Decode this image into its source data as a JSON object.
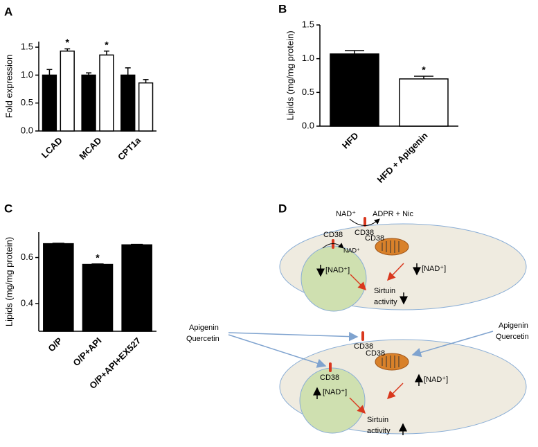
{
  "chart_data": [
    {
      "type": "bar",
      "panel": "A",
      "ylabel": "Fold expression",
      "categories": [
        "LCAD",
        "MCAD",
        "CPT1a"
      ],
      "series": [
        {
          "color": "#000000",
          "values": [
            1.0,
            1.0,
            1.0
          ],
          "errors": [
            0.1,
            0.04,
            0.13
          ],
          "significance": [
            null,
            null,
            null
          ]
        },
        {
          "color": "#ffffff",
          "values": [
            1.43,
            1.36,
            0.86
          ],
          "errors": [
            0.04,
            0.07,
            0.06
          ],
          "significance": [
            "*",
            "*",
            null
          ]
        }
      ],
      "ylim": [
        0,
        1.6
      ],
      "yticks": [
        {
          "value": 0,
          "label": "0.0"
        },
        0.5,
        {
          "value": 1,
          "label": "1.0"
        },
        1.5
      ],
      "label_rotation": 45
    },
    {
      "type": "bar",
      "panel": "B",
      "ylabel": "Lipids (mg/mg protein)",
      "categories": [
        "HFD",
        "HFD + Apigenin"
      ],
      "series": [
        {
          "colors": [
            "#000000",
            "#ffffff"
          ],
          "values": [
            1.07,
            0.7
          ],
          "errors": [
            0.05,
            0.04
          ],
          "significance": [
            null,
            "*"
          ]
        }
      ],
      "ylim": [
        0,
        1.5
      ],
      "yticks": [
        {
          "value": 0,
          "label": "0.0"
        },
        0.5,
        {
          "value": 1,
          "label": "1.0"
        },
        1.5
      ],
      "label_rotation": 45
    },
    {
      "type": "bar",
      "panel": "C",
      "ylabel": "Lipids (mg/mg protein)",
      "categories": [
        "O/P",
        "O/P+API",
        "O/P+API+EX527"
      ],
      "series": [
        {
          "color": "#000000",
          "values": [
            0.66,
            0.57,
            0.655
          ],
          "errors": [
            0.002,
            0.002,
            0.002
          ],
          "significance": [
            null,
            "*",
            null
          ]
        }
      ],
      "ylim": [
        0.28,
        0.71
      ],
      "yticks": [
        0.4,
        0.6
      ],
      "label_rotation": 45
    }
  ],
  "diagram": {
    "panel": "D",
    "top": {
      "outside": "NAD⁺",
      "products": "ADPR + Nic",
      "membrane_cd38": "CD38",
      "nucleus_cd38": "CD38",
      "nucleus_nad": "NAD⁺",
      "nucleus_pool": "[NAD⁺]",
      "mito_cd38": "CD38",
      "mito_pool": "[NAD⁺]",
      "sirtuin": "Sirtuin",
      "activity": "activity"
    },
    "bottom": {
      "inhibitor_left_1": "Apigenin",
      "inhibitor_left_2": "Quercetin",
      "inhibitor_right_1": "Apigenin",
      "inhibitor_right_2": "Quercetin",
      "membrane_cd38": "CD38",
      "nucleus_cd38": "CD38",
      "nucleus_pool": "[NAD⁺]",
      "mito_cd38": "CD38",
      "mito_pool": "[NAD⁺]",
      "sirtuin": "Sirtuin",
      "activity": "activity"
    }
  }
}
